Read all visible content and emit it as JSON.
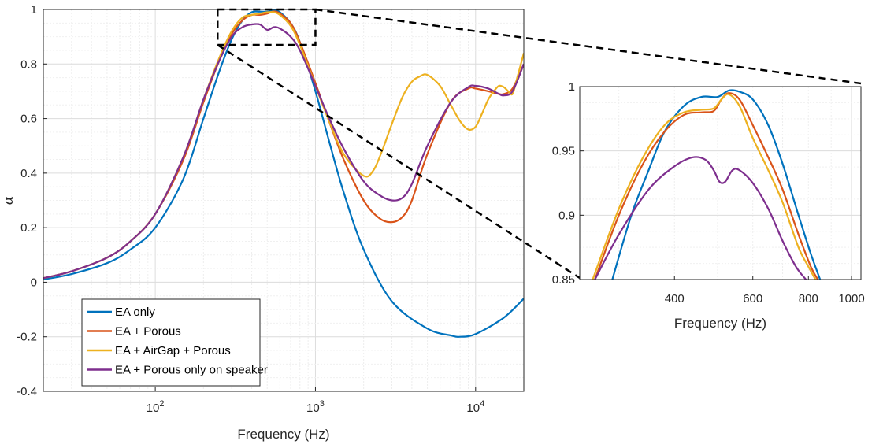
{
  "chart_data": [
    {
      "type": "line",
      "xlabel": "Frequency (Hz)",
      "ylabel": "α",
      "x_scale": "log",
      "xlim": [
        20,
        20000
      ],
      "ylim": [
        -0.4,
        1
      ],
      "x_ticks": [
        {
          "value": 100,
          "base": "10",
          "exp": "2"
        },
        {
          "value": 1000,
          "base": "10",
          "exp": "3"
        },
        {
          "value": 10000,
          "base": "10",
          "exp": "4"
        }
      ],
      "y_ticks": [
        -0.4,
        -0.2,
        0,
        0.2,
        0.4,
        0.6,
        0.8,
        1
      ],
      "y_tick_labels": [
        "-0.4",
        "-0.2",
        "0",
        "0.2",
        "0.4",
        "0.6",
        "0.8",
        "1"
      ],
      "grid": true,
      "minor_grid": true,
      "legend_position": "bottom-left",
      "zoom_box": {
        "x": [
          245,
          1000
        ],
        "y": [
          0.87,
          1.0
        ]
      },
      "series": [
        {
          "name": "EA only",
          "color": "#0072BD",
          "x": [
            20,
            30,
            50,
            70,
            100,
            150,
            200,
            250,
            300,
            350,
            400,
            450,
            500,
            550,
            600,
            700,
            800,
            1000,
            1200,
            1500,
            2000,
            3000,
            5000,
            7000,
            8000,
            10000,
            15000,
            20000
          ],
          "y": [
            0.01,
            0.03,
            0.07,
            0.12,
            0.2,
            0.38,
            0.6,
            0.77,
            0.89,
            0.96,
            0.99,
            0.992,
            0.992,
            0.997,
            0.99,
            0.95,
            0.88,
            0.7,
            0.53,
            0.33,
            0.12,
            -0.07,
            -0.17,
            -0.195,
            -0.2,
            -0.19,
            -0.13,
            -0.06
          ]
        },
        {
          "name": "EA + Porous",
          "color": "#D95319",
          "x": [
            20,
            30,
            50,
            70,
            100,
            150,
            200,
            250,
            300,
            350,
            400,
            450,
            500,
            550,
            600,
            700,
            800,
            1000,
            1200,
            1500,
            2000,
            2500,
            3000,
            3500,
            4000,
            5000,
            7000,
            9000,
            10000,
            12000,
            14000,
            15000,
            17000,
            20000
          ],
          "y": [
            0.015,
            0.04,
            0.09,
            0.15,
            0.25,
            0.45,
            0.66,
            0.81,
            0.91,
            0.96,
            0.98,
            0.98,
            0.985,
            0.993,
            0.985,
            0.95,
            0.88,
            0.73,
            0.6,
            0.45,
            0.3,
            0.235,
            0.22,
            0.24,
            0.3,
            0.47,
            0.66,
            0.71,
            0.71,
            0.7,
            0.69,
            0.69,
            0.71,
            0.8
          ]
        },
        {
          "name": "EA + AirGap + Porous",
          "color": "#EDB120",
          "x": [
            20,
            30,
            50,
            70,
            100,
            150,
            200,
            250,
            300,
            350,
            400,
            450,
            500,
            550,
            600,
            700,
            800,
            1000,
            1200,
            1500,
            2000,
            2300,
            2600,
            3000,
            3500,
            4000,
            4500,
            5000,
            6000,
            7000,
            8000,
            9000,
            10000,
            11000,
            12000,
            13000,
            14000,
            15000,
            16000,
            17000,
            18000,
            20000
          ],
          "y": [
            0.015,
            0.04,
            0.09,
            0.15,
            0.25,
            0.46,
            0.67,
            0.82,
            0.92,
            0.97,
            0.98,
            0.985,
            0.99,
            0.99,
            0.98,
            0.94,
            0.87,
            0.72,
            0.6,
            0.47,
            0.39,
            0.41,
            0.48,
            0.58,
            0.68,
            0.735,
            0.755,
            0.76,
            0.72,
            0.65,
            0.59,
            0.56,
            0.57,
            0.62,
            0.67,
            0.7,
            0.72,
            0.715,
            0.7,
            0.69,
            0.74,
            0.84
          ]
        },
        {
          "name": "EA + Porous only on speaker",
          "color": "#7E2F8E",
          "x": [
            20,
            30,
            50,
            70,
            100,
            150,
            200,
            250,
            300,
            350,
            400,
            450,
            500,
            550,
            600,
            700,
            800,
            1000,
            1200,
            1500,
            2000,
            2500,
            3000,
            3500,
            4000,
            5000,
            7000,
            9000,
            10000,
            12000,
            14000,
            15000,
            17000,
            20000
          ],
          "y": [
            0.015,
            0.04,
            0.09,
            0.15,
            0.25,
            0.46,
            0.67,
            0.81,
            0.9,
            0.935,
            0.945,
            0.945,
            0.925,
            0.935,
            0.93,
            0.9,
            0.85,
            0.72,
            0.61,
            0.49,
            0.37,
            0.32,
            0.3,
            0.31,
            0.36,
            0.5,
            0.66,
            0.715,
            0.72,
            0.71,
            0.69,
            0.685,
            0.7,
            0.8
          ]
        }
      ]
    },
    {
      "type": "line",
      "xlabel": "Frequency (Hz)",
      "ylabel": "",
      "x_scale": "log",
      "xlim": [
        245,
        1050
      ],
      "ylim": [
        0.85,
        1
      ],
      "x_ticks": [
        {
          "value": 400,
          "label": "400"
        },
        {
          "value": 600,
          "label": "600"
        },
        {
          "value": 800,
          "label": "800"
        },
        {
          "value": 1000,
          "label": "1000"
        }
      ],
      "y_ticks": [
        0.85,
        0.9,
        0.95,
        1
      ],
      "y_tick_labels": [
        "0.85",
        "0.9",
        "0.95",
        "1"
      ],
      "grid": true,
      "minor_grid": true,
      "series": [
        {
          "name": "EA only",
          "color": "#0072BD",
          "x": [
            290,
            320,
            350,
            380,
            420,
            460,
            500,
            530,
            560,
            600,
            650,
            700,
            760,
            810,
            850
          ],
          "y": [
            0.85,
            0.9,
            0.935,
            0.965,
            0.985,
            0.992,
            0.992,
            0.997,
            0.996,
            0.99,
            0.97,
            0.94,
            0.9,
            0.87,
            0.85
          ]
        },
        {
          "name": "EA + Porous",
          "color": "#D95319",
          "x": [
            265,
            300,
            340,
            380,
            420,
            460,
            490,
            510,
            530,
            560,
            600,
            650,
            700,
            760,
            810,
            840
          ],
          "y": [
            0.85,
            0.9,
            0.94,
            0.965,
            0.978,
            0.98,
            0.981,
            0.99,
            0.995,
            0.99,
            0.97,
            0.945,
            0.92,
            0.885,
            0.86,
            0.85
          ]
        },
        {
          "name": "EA + AirGap + Porous",
          "color": "#EDB120",
          "x": [
            262,
            300,
            340,
            380,
            420,
            460,
            490,
            510,
            530,
            560,
            600,
            650,
            700,
            760,
            800,
            830
          ],
          "y": [
            0.85,
            0.905,
            0.945,
            0.97,
            0.98,
            0.982,
            0.983,
            0.99,
            0.994,
            0.985,
            0.96,
            0.935,
            0.91,
            0.875,
            0.86,
            0.85
          ]
        },
        {
          "name": "EA + Porous only on speaker",
          "color": "#7E2F8E",
          "x": [
            265,
            300,
            350,
            400,
            440,
            470,
            490,
            505,
            520,
            540,
            560,
            600,
            650,
            700,
            750,
            790
          ],
          "y": [
            0.85,
            0.885,
            0.92,
            0.938,
            0.945,
            0.943,
            0.935,
            0.926,
            0.926,
            0.935,
            0.935,
            0.925,
            0.905,
            0.88,
            0.86,
            0.85
          ]
        }
      ]
    }
  ]
}
